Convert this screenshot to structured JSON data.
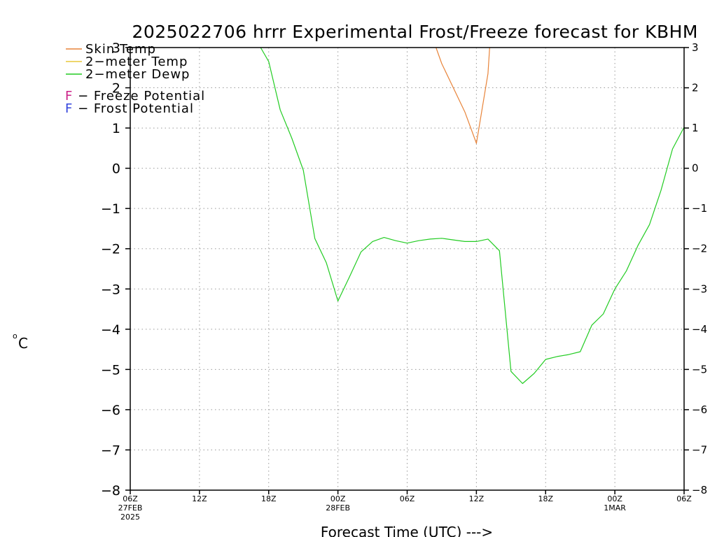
{
  "chart_data": {
    "type": "line",
    "title": "2025022706 hrrr Experimental Frost/Freeze forecast for KBHM",
    "xlabel": "Forecast Time (UTC) --->",
    "ylabel_unit": "o",
    "ylabel_letter": "C",
    "ylim": [
      -8,
      3
    ],
    "xlim": [
      0,
      48
    ],
    "grid": true,
    "legend_position": "top-left",
    "y_ticks": [
      3,
      2,
      1,
      0,
      -1,
      -2,
      -3,
      -4,
      -5,
      -6,
      -7,
      -8
    ],
    "y_tick_labels": [
      "3",
      "2",
      "1",
      "0",
      "−1",
      "−2",
      "−3",
      "−4",
      "−5",
      "−6",
      "−7",
      "−8"
    ],
    "x_ticks": [
      {
        "x": 0,
        "lines": [
          "06Z",
          "27FEB",
          "2025"
        ]
      },
      {
        "x": 6,
        "lines": [
          "12Z"
        ]
      },
      {
        "x": 12,
        "lines": [
          "18Z"
        ]
      },
      {
        "x": 18,
        "lines": [
          "00Z",
          "28FEB"
        ]
      },
      {
        "x": 24,
        "lines": [
          "06Z"
        ]
      },
      {
        "x": 30,
        "lines": [
          "12Z"
        ]
      },
      {
        "x": 36,
        "lines": [
          "18Z"
        ]
      },
      {
        "x": 42,
        "lines": [
          "00Z",
          "1MAR"
        ]
      },
      {
        "x": 48,
        "lines": [
          "06Z"
        ]
      }
    ],
    "legend": [
      {
        "label": "Skin Temp",
        "color": "#e8843a"
      },
      {
        "label": "2−meter Temp",
        "color": "#e8c83a"
      },
      {
        "label": "2−meter Dewp",
        "color": "#22cc22"
      }
    ],
    "potential_labels": [
      {
        "letter": "F",
        "text": " − Freeze Potential",
        "color": "#cc2288"
      },
      {
        "letter": "F",
        "text": " − Frost Potential",
        "color": "#3344dd"
      }
    ],
    "series": [
      {
        "name": "Skin Temp",
        "color": "#e8843a",
        "x": [
          26.5,
          27,
          28,
          29,
          30,
          31,
          31.15
        ],
        "y": [
          3.0,
          2.6,
          2.0,
          1.4,
          0.62,
          2.35,
          3.0
        ]
      },
      {
        "name": "2-meter Dewp",
        "color": "#22cc22",
        "x": [
          11.3,
          12,
          13,
          14,
          15,
          16,
          17,
          18,
          19,
          20,
          21,
          22,
          23,
          24,
          25,
          26,
          27,
          28,
          29,
          30,
          31,
          32,
          33,
          34,
          35,
          36,
          37,
          38,
          39,
          40,
          41,
          42,
          43,
          44,
          45,
          46,
          47,
          48
        ],
        "y": [
          3.0,
          2.65,
          1.45,
          0.75,
          -0.05,
          -1.75,
          -2.35,
          -3.3,
          -2.7,
          -2.08,
          -1.82,
          -1.72,
          -1.8,
          -1.86,
          -1.8,
          -1.76,
          -1.74,
          -1.78,
          -1.82,
          -1.82,
          -1.76,
          -2.05,
          -5.05,
          -5.35,
          -5.1,
          -4.75,
          -4.68,
          -4.63,
          -4.56,
          -3.9,
          -3.62,
          -3.0,
          -2.55,
          -1.92,
          -1.4,
          -0.55,
          0.48,
          1.02
        ]
      }
    ]
  }
}
